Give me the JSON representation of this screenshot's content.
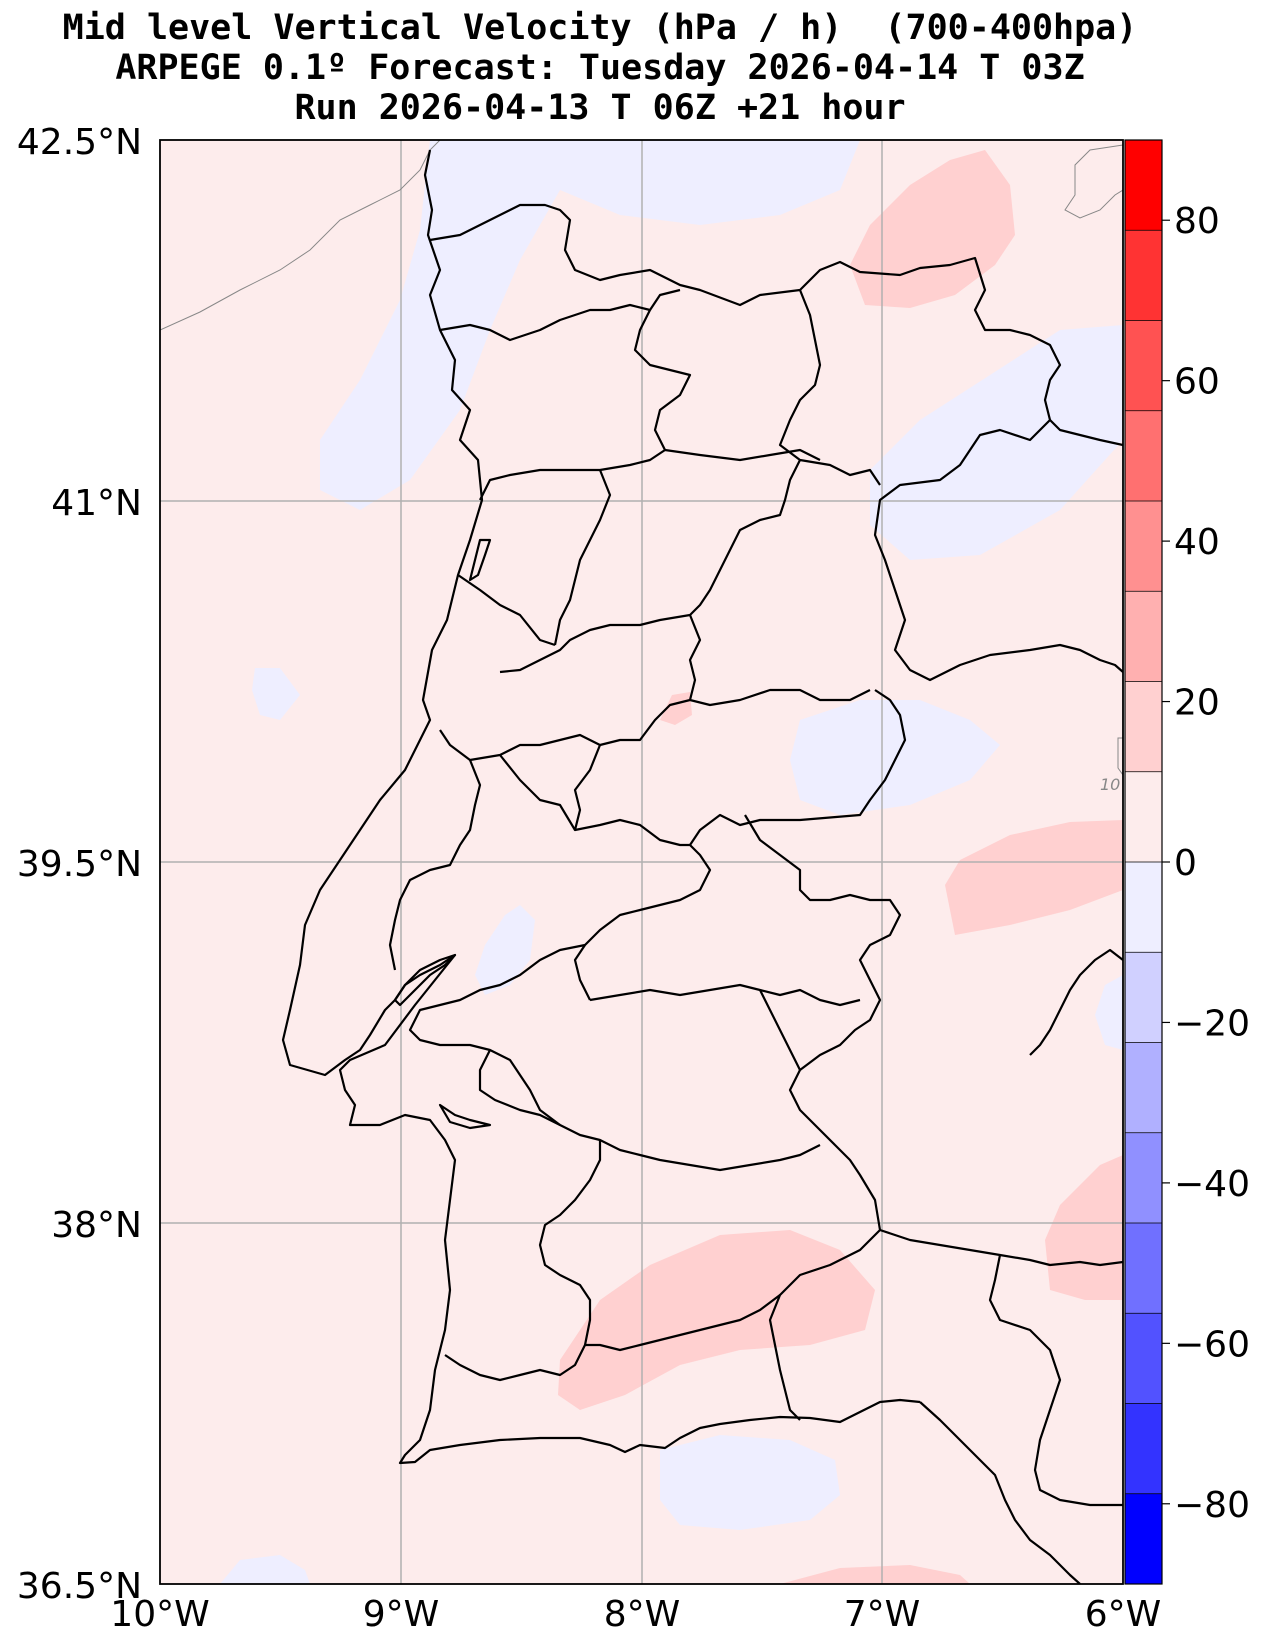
{
  "title": {
    "line1": "Mid level Vertical Velocity (hPa / h)  (700-400hpa)",
    "line2": "ARPEGE 0.1º Forecast: Tuesday 2026-04-14 T 03Z",
    "line3": "Run 2026-04-13 T 06Z +21 hour"
  },
  "map": {
    "lat_ticks": [
      "42.5°N",
      "41°N",
      "39.5°N",
      "38°N",
      "36.5°N"
    ],
    "lon_ticks": [
      "10°W",
      "9°W",
      "8°W",
      "7°W",
      "6°W"
    ],
    "isobar_label": "10",
    "background_color": "#fdecec",
    "grid": true
  },
  "colorbar": {
    "tick_labels": [
      "80",
      "60",
      "40",
      "20",
      "0",
      "−20",
      "−40",
      "−60",
      "−80"
    ],
    "range": [
      -90,
      90
    ],
    "colors_top_to_bottom": [
      "#ff0000",
      "#ff3333",
      "#ff5252",
      "#ff7070",
      "#ff9090",
      "#ffb0b0",
      "#ffd0d0",
      "#fdecec",
      "#eeeeff",
      "#d0d0ff",
      "#b0b0ff",
      "#9090ff",
      "#7070ff",
      "#5252ff",
      "#3333ff",
      "#0000ff"
    ]
  }
}
